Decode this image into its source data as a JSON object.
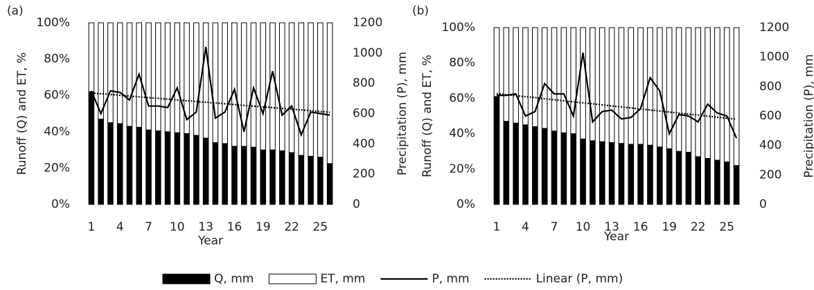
{
  "chart_data": [
    {
      "type": "bar",
      "panel": "(a)",
      "stacked": "percent",
      "y_label": "Runoff (Q) and ET, %",
      "y2_label": "Precipitation (P), mm",
      "x_label": "Year",
      "categories": [
        "1",
        null,
        null,
        "4",
        null,
        null,
        "7",
        null,
        null,
        "10",
        null,
        null,
        "13",
        null,
        null,
        "16",
        null,
        null,
        "19",
        null,
        null,
        "22",
        null,
        null,
        "25",
        null
      ],
      "ylim": [
        0,
        100
      ],
      "yticks": [
        {
          "value": 0,
          "label": "0%"
        },
        {
          "value": 20,
          "label": "20%"
        },
        {
          "value": 40,
          "label": "40%"
        },
        {
          "value": 60,
          "label": "60%"
        },
        {
          "value": 80,
          "label": "80%"
        },
        {
          "value": 100,
          "label": "100%"
        }
      ],
      "y2lim": [
        0,
        1200
      ],
      "y2ticks": [
        0,
        200,
        400,
        600,
        800,
        1000,
        1200
      ],
      "trendline": {
        "name": "Linear (P, mm)",
        "of_series": 2,
        "style": "dotted"
      },
      "series": [
        {
          "name": "Q, mm",
          "kind": "bar",
          "color": "#000000",
          "values": [
            62,
            47,
            45,
            44.5,
            43,
            42.5,
            41,
            40.5,
            40,
            39.5,
            39,
            38,
            36.5,
            34,
            33.5,
            32,
            32,
            31.5,
            30,
            30,
            29.5,
            28.5,
            27,
            26.5,
            26,
            22.5
          ]
        },
        {
          "name": "ET, mm",
          "kind": "bar",
          "color": "#ffffff",
          "values": [
            38,
            53,
            55,
            55.5,
            57,
            57.5,
            59,
            59.5,
            60,
            60.5,
            61,
            62,
            63.5,
            66,
            66.5,
            68,
            68,
            68.5,
            70,
            70,
            70.5,
            71.5,
            73,
            73.5,
            74,
            77.5
          ]
        },
        {
          "name": "P, mm",
          "kind": "line",
          "axis": "y2",
          "color": "#000000",
          "values": [
            750,
            600,
            750,
            740,
            690,
            860,
            650,
            650,
            640,
            770,
            560,
            610,
            1040,
            570,
            610,
            760,
            480,
            770,
            600,
            880,
            590,
            650,
            460,
            610,
            600,
            590
          ]
        }
      ]
    },
    {
      "type": "bar",
      "panel": "(b)",
      "stacked": "percent",
      "y_label": "Runoff (Q) and ET, %",
      "y2_label": "Precipitation (P), mm",
      "x_label": "Year",
      "categories": [
        "1",
        null,
        null,
        "4",
        null,
        null,
        "7",
        null,
        null,
        "10",
        null,
        null,
        "13",
        null,
        null,
        "16",
        null,
        null,
        "19",
        null,
        null,
        "22",
        null,
        null,
        "25",
        null
      ],
      "ylim": [
        0,
        100
      ],
      "yticks": [
        {
          "value": 0,
          "label": "0%"
        },
        {
          "value": 20,
          "label": "20%"
        },
        {
          "value": 40,
          "label": "40%"
        },
        {
          "value": 60,
          "label": "60%"
        },
        {
          "value": 80,
          "label": "80%"
        },
        {
          "value": 100,
          "label": "100%"
        }
      ],
      "y2lim": [
        0,
        1200
      ],
      "y2ticks": [
        0,
        200,
        400,
        600,
        800,
        1000,
        1200
      ],
      "trendline": {
        "of_series": 2,
        "style": "dotted"
      },
      "series": [
        {
          "kind": "bar",
          "color": "#000000",
          "values": [
            61,
            47,
            46,
            45,
            44,
            43,
            41.5,
            40.5,
            40,
            37,
            36,
            35.5,
            35,
            34.5,
            34,
            34,
            33.5,
            32.5,
            31.5,
            30,
            29.5,
            27,
            26,
            25,
            24,
            22
          ]
        },
        {
          "kind": "bar",
          "color": "#ffffff",
          "values": [
            39,
            53,
            54,
            55,
            56,
            57,
            58.5,
            59.5,
            60,
            63,
            64,
            64.5,
            65,
            65.5,
            66,
            66,
            66.5,
            67.5,
            68.5,
            70,
            70.5,
            73,
            74,
            75,
            76,
            78
          ]
        },
        {
          "kind": "line",
          "axis": "y2",
          "color": "#000000",
          "values": [
            740,
            740,
            750,
            600,
            630,
            820,
            750,
            750,
            600,
            1030,
            560,
            630,
            640,
            580,
            590,
            650,
            860,
            770,
            480,
            610,
            600,
            560,
            680,
            620,
            600,
            450
          ]
        }
      ]
    }
  ]
}
